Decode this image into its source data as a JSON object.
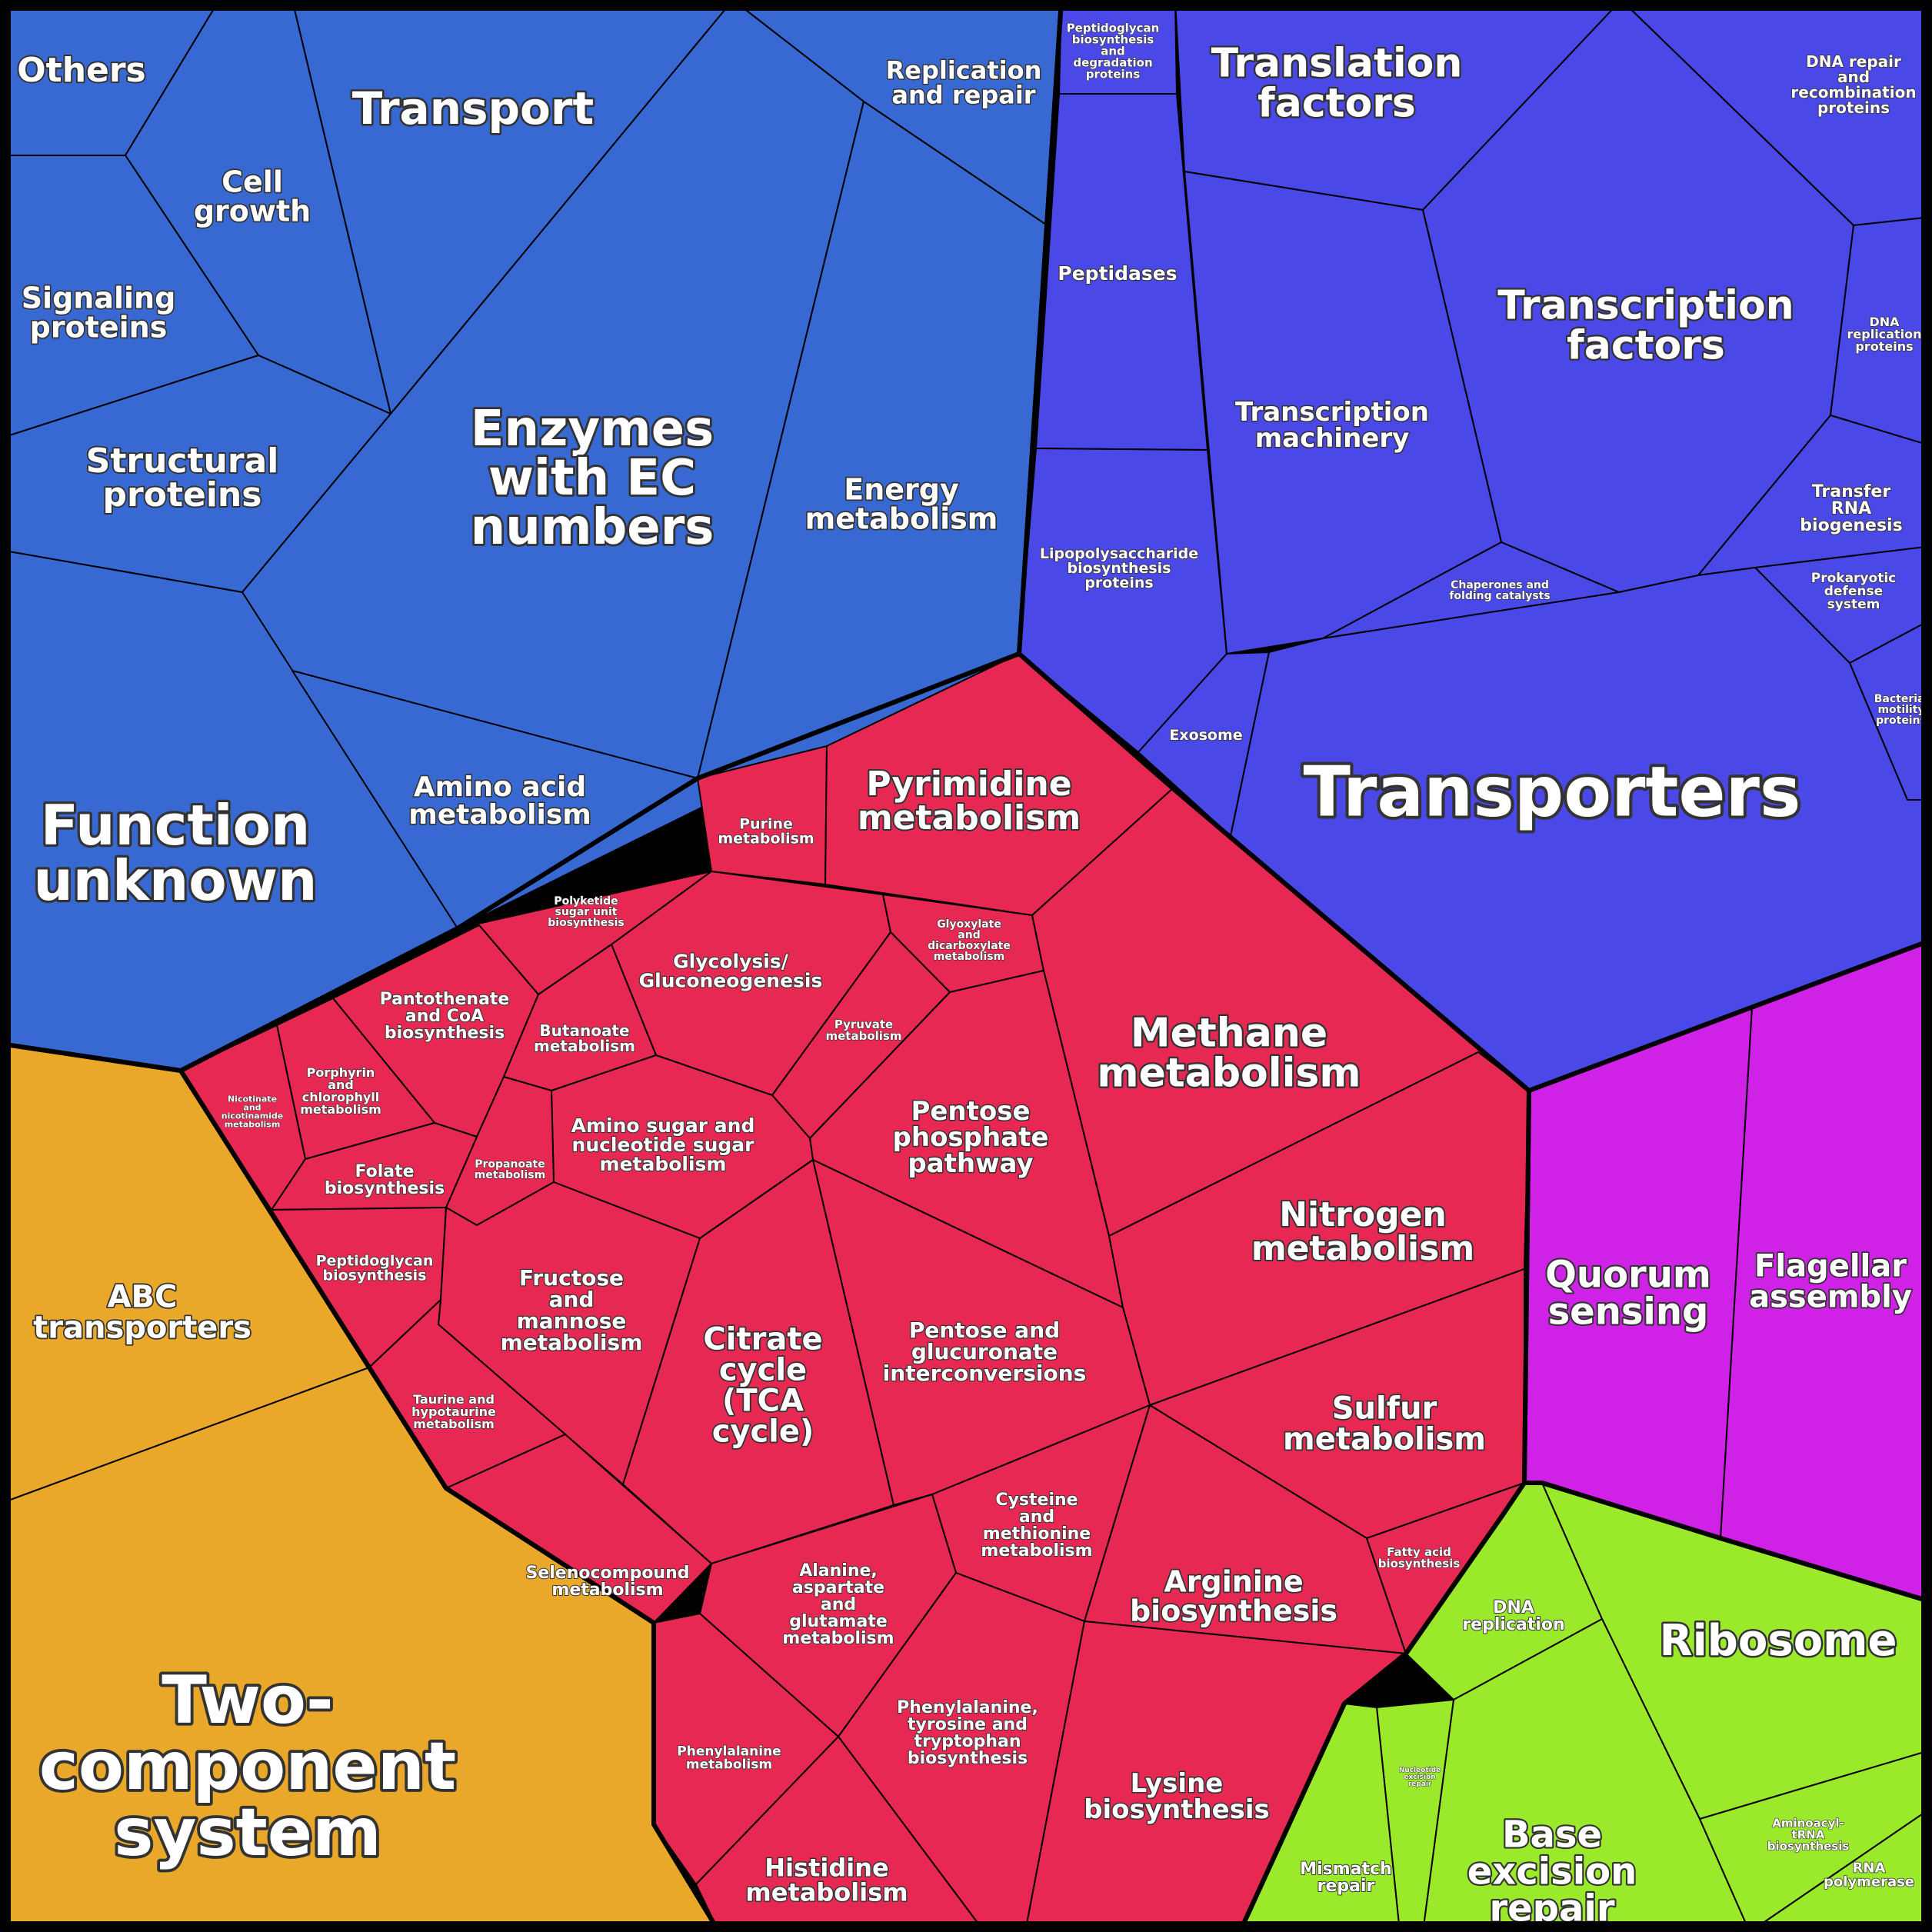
{
  "colors": {
    "outline": "#000000",
    "label": "#ffffff",
    "groups": {
      "blue": "#3869d2",
      "indigo": "#4b48e8",
      "crimson": "#e72853",
      "orange": "#e9a82a",
      "violet": "#cf22e6",
      "lime": "#9ae92a"
    }
  },
  "categories": [
    {
      "id": "others",
      "group": "blue",
      "label": "Others"
    },
    {
      "id": "transport",
      "group": "blue",
      "label": "Transport"
    },
    {
      "id": "replication-and-repair",
      "group": "blue",
      "label": "Replication\nand repair"
    },
    {
      "id": "cell-growth",
      "group": "blue",
      "label": "Cell\ngrowth"
    },
    {
      "id": "signaling-proteins",
      "group": "blue",
      "label": "Signaling\nproteins"
    },
    {
      "id": "structural-proteins",
      "group": "blue",
      "label": "Structural\nproteins"
    },
    {
      "id": "enzymes-with-ec-numbers",
      "group": "blue",
      "label": "Enzymes\nwith EC\nnumbers"
    },
    {
      "id": "energy-metabolism",
      "group": "blue",
      "label": "Energy\nmetabolism"
    },
    {
      "id": "function-unknown",
      "group": "blue",
      "label": "Function\nunknown"
    },
    {
      "id": "amino-acid-metabolism",
      "group": "blue",
      "label": "Amino acid\nmetabolism"
    },
    {
      "id": "peptidoglycan-biosynthesis-proteins",
      "group": "indigo",
      "label": "Peptidoglycan\nbiosynthesis\nand\ndegradation\nproteins"
    },
    {
      "id": "peptidases",
      "group": "indigo",
      "label": "Peptidases"
    },
    {
      "id": "lipopolysaccharide-biosynthesis-proteins",
      "group": "indigo",
      "label": "Lipopolysaccharide\nbiosynthesis\nproteins"
    },
    {
      "id": "translation-factors",
      "group": "indigo",
      "label": "Translation\nfactors"
    },
    {
      "id": "dna-repair-and-recombination-proteins",
      "group": "indigo",
      "label": "DNA repair\nand\nrecombination\nproteins"
    },
    {
      "id": "transcription-factors",
      "group": "indigo",
      "label": "Transcription\nfactors"
    },
    {
      "id": "dna-replication-proteins",
      "group": "indigo",
      "label": "DNA\nreplication\nproteins"
    },
    {
      "id": "transcription-machinery",
      "group": "indigo",
      "label": "Transcription\nmachinery"
    },
    {
      "id": "transfer-rna-biogenesis",
      "group": "indigo",
      "label": "Transfer\nRNA\nbiogenesis"
    },
    {
      "id": "chaperones-and-folding-catalysts",
      "group": "indigo",
      "label": "Chaperones and\nfolding catalysts"
    },
    {
      "id": "prokaryotic-defense-system",
      "group": "indigo",
      "label": "Prokaryotic\ndefense\nsystem"
    },
    {
      "id": "bacterial-motility-proteins",
      "group": "indigo",
      "label": "Bacterial\nmotility\nproteins"
    },
    {
      "id": "exosome",
      "group": "indigo",
      "label": "Exosome"
    },
    {
      "id": "transporters",
      "group": "indigo",
      "label": "Transporters"
    },
    {
      "id": "purine-metabolism",
      "group": "crimson",
      "label": "Purine\nmetabolism"
    },
    {
      "id": "pyrimidine-metabolism",
      "group": "crimson",
      "label": "Pyrimidine\nmetabolism"
    },
    {
      "id": "polyketide-sugar-unit-biosynthesis",
      "group": "crimson",
      "label": "Polyketide\nsugar unit\nbiosynthesis"
    },
    {
      "id": "glycolysis-gluconeogenesis",
      "group": "crimson",
      "label": "Glycolysis/\nGluconeogenesis"
    },
    {
      "id": "glyoxylate-and-dicarboxylate-metabolism",
      "group": "crimson",
      "label": "Glyoxylate\nand\ndicarboxylate\nmetabolism"
    },
    {
      "id": "pantothenate-and-coa-biosynthesis",
      "group": "crimson",
      "label": "Pantothenate\nand CoA\nbiosynthesis"
    },
    {
      "id": "butanoate-metabolism",
      "group": "crimson",
      "label": "Butanoate\nmetabolism"
    },
    {
      "id": "pyruvate-metabolism",
      "group": "crimson",
      "label": "Pyruvate\nmetabolism"
    },
    {
      "id": "methane-metabolism",
      "group": "crimson",
      "label": "Methane\nmetabolism"
    },
    {
      "id": "porphyrin-and-chlorophyll-metabolism",
      "group": "crimson",
      "label": "Porphyrin\nand\nchlorophyll\nmetabolism"
    },
    {
      "id": "nicotinate-and-nicotinamide-metabolism",
      "group": "crimson",
      "label": "Nicotinate\nand\nnicotinamide\nmetabolism"
    },
    {
      "id": "pentose-phosphate-pathway",
      "group": "crimson",
      "label": "Pentose\nphosphate\npathway"
    },
    {
      "id": "amino-sugar-and-nucleotide-sugar-metabolism",
      "group": "crimson",
      "label": "Amino sugar and\nnucleotide sugar\nmetabolism"
    },
    {
      "id": "propanoate-metabolism",
      "group": "crimson",
      "label": "Propanoate\nmetabolism"
    },
    {
      "id": "folate-biosynthesis",
      "group": "crimson",
      "label": "Folate\nbiosynthesis"
    },
    {
      "id": "nitrogen-metabolism",
      "group": "crimson",
      "label": "Nitrogen\nmetabolism"
    },
    {
      "id": "peptidoglycan-biosynthesis",
      "group": "crimson",
      "label": "Peptidoglycan\nbiosynthesis"
    },
    {
      "id": "fructose-and-mannose-metabolism",
      "group": "crimson",
      "label": "Fructose\nand\nmannose\nmetabolism"
    },
    {
      "id": "citrate-cycle-tca-cycle",
      "group": "crimson",
      "label": "Citrate\ncycle\n(TCA\ncycle)"
    },
    {
      "id": "pentose-and-glucuronate-interconversions",
      "group": "crimson",
      "label": "Pentose and\nglucuronate\ninterconversions"
    },
    {
      "id": "sulfur-metabolism",
      "group": "crimson",
      "label": "Sulfur\nmetabolism"
    },
    {
      "id": "taurine-and-hypotaurine-metabolism",
      "group": "crimson",
      "label": "Taurine and\nhypotaurine\nmetabolism"
    },
    {
      "id": "selenocompound-metabolism",
      "group": "crimson",
      "label": "Selenocompound\nmetabolism"
    },
    {
      "id": "cysteine-and-methionine-metabolism",
      "group": "crimson",
      "label": "Cysteine\nand\nmethionine\nmetabolism"
    },
    {
      "id": "arginine-biosynthesis",
      "group": "crimson",
      "label": "Arginine\nbiosynthesis"
    },
    {
      "id": "fatty-acid-biosynthesis",
      "group": "crimson",
      "label": "Fatty acid\nbiosynthesis"
    },
    {
      "id": "alanine-aspartate-and-glutamate-metabolism",
      "group": "crimson",
      "label": "Alanine,\naspartate\nand\nglutamate\nmetabolism"
    },
    {
      "id": "phenylalanine-metabolism",
      "group": "crimson",
      "label": "Phenylalanine\nmetabolism"
    },
    {
      "id": "phenylalanine-tyrosine-and-tryptophan-biosynthesis",
      "group": "crimson",
      "label": "Phenylalanine,\ntyrosine and\ntryptophan\nbiosynthesis"
    },
    {
      "id": "lysine-biosynthesis",
      "group": "crimson",
      "label": "Lysine\nbiosynthesis"
    },
    {
      "id": "histidine-metabolism",
      "group": "crimson",
      "label": "Histidine\nmetabolism"
    },
    {
      "id": "abc-transporters",
      "group": "orange",
      "label": "ABC\ntransporters"
    },
    {
      "id": "two-component-system",
      "group": "orange",
      "label": "Two-\ncomponent\nsystem"
    },
    {
      "id": "quorum-sensing",
      "group": "violet",
      "label": "Quorum\nsensing"
    },
    {
      "id": "flagellar-assembly",
      "group": "violet",
      "label": "Flagellar\nassembly"
    },
    {
      "id": "dna-replication",
      "group": "lime",
      "label": "DNA\nreplication"
    },
    {
      "id": "ribosome",
      "group": "lime",
      "label": "Ribosome"
    },
    {
      "id": "base-excision-repair",
      "group": "lime",
      "label": "Base\nexcision\nrepair"
    },
    {
      "id": "nucleotide-excision-repair",
      "group": "lime",
      "label": "Nucleotide\nexcision\nrepair"
    },
    {
      "id": "aminoacyl-trna-biosynthesis",
      "group": "lime",
      "label": "Aminoacyl-\ntRNA\nbiosynthesis"
    },
    {
      "id": "mismatch-repair",
      "group": "lime",
      "label": "Mismatch\nrepair"
    },
    {
      "id": "rna-polymerase",
      "group": "lime",
      "label": "RNA\npolymerase"
    }
  ]
}
